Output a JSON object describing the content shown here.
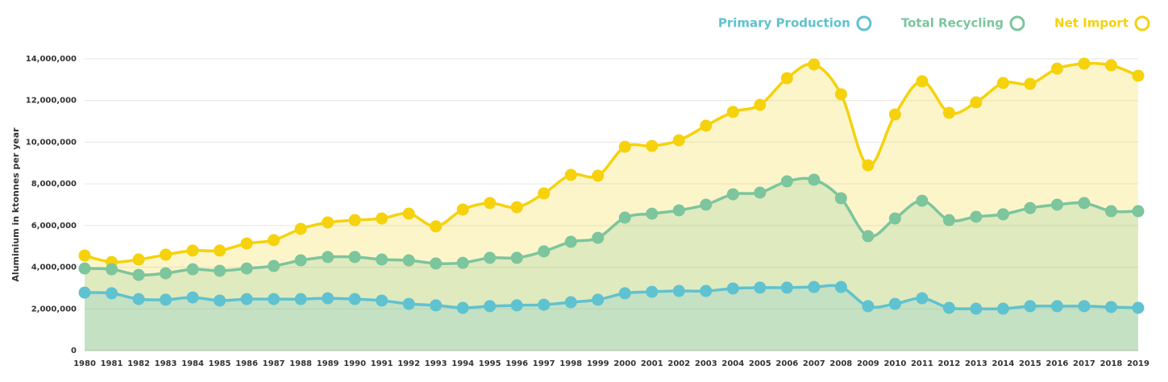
{
  "chart_data": {
    "type": "area",
    "y_label": "Aluminium in ktonnes per year",
    "categories": [
      "1980",
      "1981",
      "1982",
      "1983",
      "1984",
      "1985",
      "1986",
      "1987",
      "1988",
      "1989",
      "1990",
      "1991",
      "1992",
      "1993",
      "1994",
      "1995",
      "1996",
      "1997",
      "1998",
      "1999",
      "2000",
      "2001",
      "2002",
      "2003",
      "2004",
      "2005",
      "2006",
      "2007",
      "2008",
      "2009",
      "2010",
      "2011",
      "2012",
      "2013",
      "2014",
      "2015",
      "2016",
      "2017",
      "2018",
      "2019"
    ],
    "series": [
      {
        "name": "Primary Production",
        "color": "#5fc2d0",
        "values": [
          2780000,
          2750000,
          2470000,
          2440000,
          2550000,
          2400000,
          2470000,
          2470000,
          2470000,
          2510000,
          2470000,
          2400000,
          2240000,
          2170000,
          2050000,
          2130000,
          2170000,
          2200000,
          2320000,
          2440000,
          2750000,
          2820000,
          2860000,
          2860000,
          2980000,
          3020000,
          3020000,
          3050000,
          3050000,
          2130000,
          2240000,
          2510000,
          2050000,
          2010000,
          2010000,
          2130000,
          2130000,
          2130000,
          2090000,
          2050000
        ]
      },
      {
        "name": "Total Recycling",
        "color": "#7cc59d",
        "values": [
          3940000,
          3900000,
          3630000,
          3710000,
          3900000,
          3830000,
          3940000,
          4060000,
          4330000,
          4490000,
          4490000,
          4370000,
          4330000,
          4180000,
          4210000,
          4450000,
          4450000,
          4760000,
          5220000,
          5410000,
          6380000,
          6570000,
          6730000,
          7000000,
          7500000,
          7580000,
          8120000,
          8200000,
          7310000,
          5490000,
          6340000,
          7190000,
          6260000,
          6420000,
          6540000,
          6840000,
          7000000,
          7080000,
          6690000,
          6690000
        ]
      },
      {
        "name": "Net Import",
        "color": "#f5d20c",
        "values": [
          4560000,
          4250000,
          4370000,
          4600000,
          4800000,
          4800000,
          5140000,
          5300000,
          5840000,
          6150000,
          6260000,
          6340000,
          6570000,
          5960000,
          6770000,
          7080000,
          6880000,
          7540000,
          8430000,
          8390000,
          9780000,
          9820000,
          10090000,
          10790000,
          11450000,
          11790000,
          13070000,
          13730000,
          12300000,
          8890000,
          11330000,
          12920000,
          11410000,
          11910000,
          12840000,
          12800000,
          13530000,
          13770000,
          13690000,
          13190000
        ]
      }
    ],
    "ylim": [
      0,
      14000000
    ],
    "yticks": [
      0,
      {
        "value": 2000000,
        "label": "2,000,000"
      },
      {
        "value": 4000000,
        "label": "4,000,000"
      },
      {
        "value": 6000000,
        "label": "6,000,000"
      },
      {
        "value": 8000000,
        "label": "8,000,000"
      },
      {
        "value": 10000000,
        "label": "10,000,000"
      },
      {
        "value": 12000000,
        "label": "12,000,000"
      },
      {
        "value": 14000000,
        "label": "14,000,000"
      }
    ],
    "grid": true,
    "legend": "top-right"
  }
}
